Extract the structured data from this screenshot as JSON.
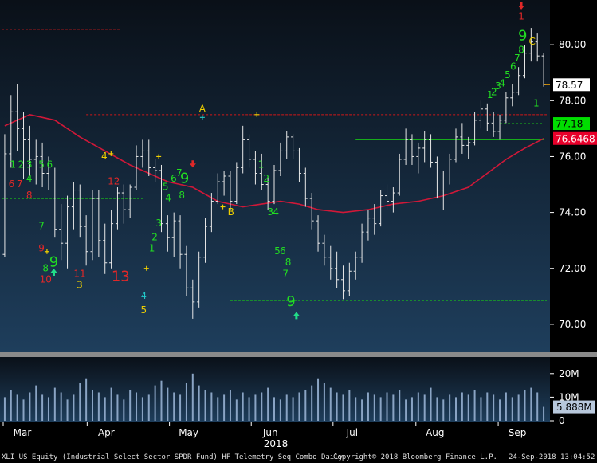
{
  "chart_data": {
    "type": "candlestick-bar",
    "title": "",
    "x_axis": {
      "months": [
        "Mar",
        "Apr",
        "May",
        "Jun",
        "Jul",
        "Aug",
        "Sep"
      ],
      "year": "2018"
    },
    "price_axis": {
      "ticks": [
        "80.00",
        "78.00",
        "76.00",
        "74.00",
        "72.00",
        "70.00"
      ],
      "ylim": [
        69.0,
        81.6
      ]
    },
    "volume_axis": {
      "ticks": [
        "20M",
        "10M",
        "0"
      ],
      "ylim": [
        0,
        25
      ]
    },
    "price_labels": [
      {
        "text": "78.57",
        "value": 78.57,
        "bg": "#ffffff",
        "fg": "#000000"
      },
      {
        "text": "77.18",
        "value": 77.18,
        "bg": "#00dd00",
        "fg": "#000000"
      },
      {
        "text": "76.6468",
        "value": 76.6468,
        "bg": "#e8002a",
        "fg": "#ffffff"
      }
    ],
    "volume_label": {
      "text": "5.888M",
      "value": 5.888
    },
    "bars": [
      [
        72.5,
        76.8,
        72.4,
        76.1
      ],
      [
        76.1,
        78.2,
        75.6,
        77.6
      ],
      [
        77.6,
        78.6,
        76.2,
        77.0
      ],
      [
        77.0,
        77.6,
        75.2,
        76.6
      ],
      [
        76.6,
        77.1,
        75.3,
        75.9
      ],
      [
        75.9,
        76.6,
        75.0,
        76.0
      ],
      [
        76.0,
        76.5,
        74.9,
        75.4
      ],
      [
        75.4,
        76.0,
        74.8,
        75.2
      ],
      [
        75.2,
        75.6,
        73.1,
        73.4
      ],
      [
        73.4,
        74.3,
        72.3,
        72.9
      ],
      [
        72.9,
        74.6,
        72.0,
        74.2
      ],
      [
        74.2,
        75.1,
        73.4,
        74.8
      ],
      [
        74.8,
        75.0,
        73.1,
        73.5
      ],
      [
        73.5,
        73.9,
        72.1,
        72.6
      ],
      [
        72.6,
        74.8,
        72.3,
        74.5
      ],
      [
        74.5,
        74.8,
        72.4,
        73.0
      ],
      [
        73.0,
        73.6,
        71.8,
        72.2
      ],
      [
        72.2,
        74.1,
        72.0,
        73.6
      ],
      [
        73.6,
        74.9,
        73.4,
        74.7
      ],
      [
        74.7,
        75.0,
        73.6,
        74.1
      ],
      [
        74.1,
        75.0,
        73.8,
        74.9
      ],
      [
        74.9,
        76.4,
        74.8,
        76.0
      ],
      [
        76.0,
        76.6,
        75.6,
        76.2
      ],
      [
        76.2,
        76.6,
        75.3,
        75.6
      ],
      [
        75.6,
        75.9,
        75.1,
        75.5
      ],
      [
        75.5,
        75.7,
        73.3,
        73.6
      ],
      [
        73.6,
        73.9,
        72.6,
        73.1
      ],
      [
        73.1,
        74.0,
        72.4,
        73.7
      ],
      [
        73.7,
        73.9,
        72.0,
        72.5
      ],
      [
        72.5,
        72.8,
        71.0,
        71.3
      ],
      [
        71.3,
        71.6,
        70.2,
        70.8
      ],
      [
        70.8,
        72.6,
        70.6,
        72.4
      ],
      [
        72.4,
        73.8,
        72.2,
        73.5
      ],
      [
        73.5,
        74.7,
        73.3,
        74.4
      ],
      [
        74.4,
        75.4,
        74.3,
        75.1
      ],
      [
        75.1,
        75.5,
        74.6,
        75.3
      ],
      [
        75.3,
        75.5,
        74.1,
        74.4
      ],
      [
        74.4,
        75.8,
        74.3,
        75.6
      ],
      [
        75.6,
        77.1,
        75.4,
        76.6
      ],
      [
        76.6,
        76.8,
        75.6,
        75.9
      ],
      [
        75.9,
        76.2,
        75.0,
        75.4
      ],
      [
        75.4,
        76.1,
        74.8,
        75.0
      ],
      [
        75.0,
        75.3,
        74.1,
        74.4
      ],
      [
        74.4,
        75.7,
        74.3,
        75.5
      ],
      [
        75.5,
        76.5,
        75.3,
        76.2
      ],
      [
        76.2,
        76.9,
        75.9,
        76.7
      ],
      [
        76.7,
        76.8,
        75.9,
        76.2
      ],
      [
        76.2,
        76.3,
        75.1,
        75.4
      ],
      [
        75.4,
        75.6,
        74.2,
        74.5
      ],
      [
        74.5,
        74.7,
        73.4,
        73.7
      ],
      [
        73.7,
        73.9,
        72.6,
        72.9
      ],
      [
        72.9,
        73.2,
        72.1,
        72.4
      ],
      [
        72.4,
        72.8,
        71.6,
        72.0
      ],
      [
        72.0,
        72.6,
        71.3,
        71.6
      ],
      [
        71.6,
        72.1,
        70.9,
        71.2
      ],
      [
        71.2,
        72.2,
        71.0,
        71.9
      ],
      [
        71.9,
        72.6,
        71.6,
        72.4
      ],
      [
        72.4,
        73.6,
        72.2,
        73.3
      ],
      [
        73.3,
        74.1,
        73.0,
        73.8
      ],
      [
        73.8,
        74.3,
        73.2,
        73.6
      ],
      [
        73.6,
        74.8,
        73.5,
        74.6
      ],
      [
        74.6,
        75.0,
        74.1,
        74.4
      ],
      [
        74.4,
        74.9,
        74.0,
        74.7
      ],
      [
        74.7,
        76.1,
        74.6,
        75.9
      ],
      [
        75.9,
        77.0,
        75.7,
        76.6
      ],
      [
        76.6,
        76.8,
        75.7,
        76.0
      ],
      [
        76.0,
        76.5,
        75.4,
        76.3
      ],
      [
        76.3,
        76.9,
        75.8,
        76.6
      ],
      [
        76.6,
        76.8,
        75.6,
        75.8
      ],
      [
        75.8,
        76.0,
        74.5,
        74.8
      ],
      [
        74.8,
        75.5,
        74.1,
        75.2
      ],
      [
        75.2,
        76.1,
        75.0,
        75.9
      ],
      [
        75.9,
        77.0,
        75.8,
        76.7
      ],
      [
        76.7,
        77.2,
        76.1,
        76.4
      ],
      [
        76.4,
        76.7,
        75.9,
        76.5
      ],
      [
        76.5,
        77.6,
        76.4,
        77.3
      ],
      [
        77.3,
        78.0,
        77.0,
        77.7
      ],
      [
        77.7,
        77.9,
        76.9,
        77.2
      ],
      [
        77.2,
        77.6,
        76.7,
        76.9
      ],
      [
        76.9,
        77.5,
        76.6,
        77.3
      ],
      [
        77.3,
        78.3,
        77.2,
        78.1
      ],
      [
        78.1,
        78.6,
        77.8,
        78.3
      ],
      [
        78.3,
        79.2,
        78.2,
        78.9
      ],
      [
        78.9,
        80.0,
        78.8,
        79.7
      ],
      [
        79.7,
        80.6,
        79.4,
        80.1
      ],
      [
        80.1,
        80.4,
        79.4,
        79.6
      ],
      [
        79.6,
        79.7,
        78.5,
        78.57
      ]
    ],
    "ma_line": [
      [
        0,
        77.1
      ],
      [
        4,
        77.5
      ],
      [
        8,
        77.3
      ],
      [
        12,
        76.7
      ],
      [
        16,
        76.2
      ],
      [
        20,
        75.7
      ],
      [
        23,
        75.4
      ],
      [
        26,
        75.1
      ],
      [
        30,
        74.9
      ],
      [
        34,
        74.4
      ],
      [
        38,
        74.2
      ],
      [
        41,
        74.3
      ],
      [
        44,
        74.4
      ],
      [
        47,
        74.3
      ],
      [
        50,
        74.1
      ],
      [
        54,
        74.0
      ],
      [
        58,
        74.1
      ],
      [
        62,
        74.3
      ],
      [
        66,
        74.4
      ],
      [
        70,
        74.6
      ],
      [
        74,
        74.9
      ],
      [
        77,
        75.4
      ],
      [
        80,
        75.9
      ],
      [
        83,
        76.3
      ],
      [
        86,
        76.6468
      ]
    ],
    "volumes": [
      10,
      13,
      11,
      9,
      12,
      15,
      11,
      10,
      14,
      12,
      9,
      11,
      16,
      18,
      13,
      12,
      10,
      14,
      11,
      9,
      13,
      12,
      10,
      11,
      15,
      17,
      14,
      12,
      11,
      16,
      20,
      15,
      13,
      12,
      10,
      11,
      13,
      9,
      12,
      10,
      11,
      12,
      14,
      10,
      9,
      11,
      10,
      12,
      13,
      15,
      18,
      16,
      14,
      12,
      11,
      13,
      10,
      9,
      12,
      11,
      10,
      12,
      11,
      13,
      9,
      10,
      12,
      11,
      14,
      10,
      9,
      11,
      10,
      12,
      11,
      13,
      10,
      12,
      11,
      9,
      12,
      10,
      11,
      13,
      14,
      12,
      5.888
    ],
    "reference_lines": [
      {
        "y": 80.55,
        "x_start": -0.5,
        "x_end": 18.5,
        "color": "#d01818",
        "style": "dashed"
      },
      {
        "y": 77.5,
        "x_start": 13,
        "x_end": 89,
        "color": "#d01818",
        "style": "dashed"
      },
      {
        "y": 74.5,
        "x_start": -0.5,
        "x_end": 22,
        "color": "#18c018",
        "style": "dashed"
      },
      {
        "y": 76.6,
        "x_start": 56,
        "x_end": 86,
        "color": "#18c018",
        "style": "solid"
      },
      {
        "y": 70.85,
        "x_start": 36,
        "x_end": 100,
        "color": "#18c018",
        "style": "dashed"
      },
      {
        "y": 77.18,
        "x_start": 79,
        "x_end": 86,
        "color": "#18c018",
        "style": "dashed"
      }
    ],
    "annotations": [
      {
        "text": "1",
        "x": 0.6,
        "y": 75.7,
        "color": "#22dd22",
        "size": 12
      },
      {
        "text": "2",
        "x": 1.2,
        "y": 75.7,
        "color": "#22dd22",
        "size": 12
      },
      {
        "text": "3",
        "x": 1.8,
        "y": 75.7,
        "color": "#22dd22",
        "size": 12
      },
      {
        "text": "5",
        "x": 2.7,
        "y": 75.7,
        "color": "#22dd22",
        "size": 12
      },
      {
        "text": "6",
        "x": 3.3,
        "y": 75.7,
        "color": "#22dd22",
        "size": 12
      },
      {
        "text": "4",
        "x": 1.8,
        "y": 75.2,
        "color": "#22dd22",
        "size": 12
      },
      {
        "text": "6",
        "x": 0.5,
        "y": 75.0,
        "color": "#e02828",
        "size": 12
      },
      {
        "text": "7",
        "x": 1.1,
        "y": 75.0,
        "color": "#e02828",
        "size": 12
      },
      {
        "text": "8",
        "x": 1.8,
        "y": 74.6,
        "color": "#e02828",
        "size": 12
      },
      {
        "text": "7",
        "x": 2.7,
        "y": 73.5,
        "color": "#22dd22",
        "size": 12
      },
      {
        "text": "9",
        "x": 2.7,
        "y": 72.7,
        "color": "#e02828",
        "size": 12
      },
      {
        "text": "9",
        "x": 3.6,
        "y": 72.2,
        "color": "#22dd22",
        "size": 18
      },
      {
        "text": "8",
        "x": 3.0,
        "y": 72.0,
        "color": "#22dd22",
        "size": 12
      },
      {
        "text": "10",
        "x": 3.0,
        "y": 71.6,
        "color": "#e02828",
        "size": 12
      },
      {
        "text": "11",
        "x": 5.5,
        "y": 71.8,
        "color": "#e02828",
        "size": 12
      },
      {
        "text": "3",
        "x": 5.5,
        "y": 71.4,
        "color": "#f0d000",
        "size": 12
      },
      {
        "text": "4",
        "x": 7.3,
        "y": 76.0,
        "color": "#f0d000",
        "size": 12
      },
      {
        "text": "12",
        "x": 8.0,
        "y": 75.1,
        "color": "#e02828",
        "size": 12
      },
      {
        "text": "13",
        "x": 8.5,
        "y": 71.7,
        "color": "#e02828",
        "size": 18
      },
      {
        "text": "1",
        "x": 10.8,
        "y": 72.7,
        "color": "#22dd22",
        "size": 12
      },
      {
        "text": "2",
        "x": 11.0,
        "y": 73.1,
        "color": "#22dd22",
        "size": 12
      },
      {
        "text": "3",
        "x": 11.3,
        "y": 73.6,
        "color": "#22dd22",
        "size": 12
      },
      {
        "text": "4",
        "x": 12.0,
        "y": 74.5,
        "color": "#22dd22",
        "size": 12
      },
      {
        "text": "5",
        "x": 11.8,
        "y": 74.9,
        "color": "#22dd22",
        "size": 12
      },
      {
        "text": "6",
        "x": 12.4,
        "y": 75.2,
        "color": "#22dd22",
        "size": 12
      },
      {
        "text": "7",
        "x": 12.8,
        "y": 75.4,
        "color": "#22dd22",
        "size": 12
      },
      {
        "text": "8",
        "x": 13.0,
        "y": 74.6,
        "color": "#22dd22",
        "size": 12
      },
      {
        "text": "9",
        "x": 13.2,
        "y": 75.2,
        "color": "#22dd22",
        "size": 18
      },
      {
        "text": "4",
        "x": 10.2,
        "y": 71.0,
        "color": "#22cccc",
        "size": 11
      },
      {
        "text": "5",
        "x": 10.2,
        "y": 70.5,
        "color": "#f0d000",
        "size": 12
      },
      {
        "text": "A",
        "x": 14.5,
        "y": 77.7,
        "color": "#f0d000",
        "size": 12
      },
      {
        "text": "B",
        "x": 16.6,
        "y": 74.0,
        "color": "#f0d000",
        "size": 12
      },
      {
        "text": "1",
        "x": 18.8,
        "y": 75.7,
        "color": "#22dd22",
        "size": 12
      },
      {
        "text": "2",
        "x": 19.2,
        "y": 75.2,
        "color": "#22dd22",
        "size": 12
      },
      {
        "text": "3",
        "x": 19.5,
        "y": 74.0,
        "color": "#22dd22",
        "size": 12
      },
      {
        "text": "4",
        "x": 19.9,
        "y": 74.0,
        "color": "#22dd22",
        "size": 12
      },
      {
        "text": "5",
        "x": 20.0,
        "y": 72.6,
        "color": "#22dd22",
        "size": 12
      },
      {
        "text": "6",
        "x": 20.4,
        "y": 72.6,
        "color": "#22dd22",
        "size": 12
      },
      {
        "text": "8",
        "x": 20.8,
        "y": 72.2,
        "color": "#22dd22",
        "size": 12
      },
      {
        "text": "7",
        "x": 20.6,
        "y": 71.8,
        "color": "#22dd22",
        "size": 12
      },
      {
        "text": "9",
        "x": 21.0,
        "y": 70.8,
        "color": "#22dd22",
        "size": 18
      },
      {
        "text": "1",
        "x": 35.6,
        "y": 78.2,
        "color": "#22dd22",
        "size": 12
      },
      {
        "text": "2",
        "x": 35.9,
        "y": 78.3,
        "color": "#22dd22",
        "size": 12
      },
      {
        "text": "3",
        "x": 36.2,
        "y": 78.5,
        "color": "#22dd22",
        "size": 12
      },
      {
        "text": "4",
        "x": 36.5,
        "y": 78.6,
        "color": "#22dd22",
        "size": 12
      },
      {
        "text": "5",
        "x": 36.9,
        "y": 78.9,
        "color": "#22dd22",
        "size": 12
      },
      {
        "text": "6",
        "x": 37.3,
        "y": 79.2,
        "color": "#22dd22",
        "size": 12
      },
      {
        "text": "7",
        "x": 37.6,
        "y": 79.5,
        "color": "#22dd22",
        "size": 12
      },
      {
        "text": "8",
        "x": 37.9,
        "y": 79.8,
        "color": "#22dd22",
        "size": 12
      },
      {
        "text": "9",
        "x": 38.0,
        "y": 80.3,
        "color": "#22dd22",
        "size": 18
      },
      {
        "text": "C",
        "x": 38.7,
        "y": 80.1,
        "color": "#f0d000",
        "size": 12
      },
      {
        "text": "1",
        "x": 37.9,
        "y": 81.0,
        "color": "#e02828",
        "size": 12
      },
      {
        "text": "1",
        "x": 39.0,
        "y": 77.9,
        "color": "#22dd22",
        "size": 12
      }
    ],
    "arrows": [
      {
        "x": 3.6,
        "y": 71.85,
        "dir": "up",
        "color": "#22dd88"
      },
      {
        "x": 21.4,
        "y": 70.3,
        "dir": "up",
        "color": "#22dd88"
      },
      {
        "x": 13.8,
        "y": 75.75,
        "dir": "down",
        "color": "#e02828"
      },
      {
        "x": 37.9,
        "y": 81.4,
        "dir": "down",
        "color": "#e02828"
      }
    ],
    "plus_marks": [
      {
        "x": 7.8,
        "y": 76.1,
        "color": "#f0d000"
      },
      {
        "x": 3.1,
        "y": 72.6,
        "color": "#f0d000"
      },
      {
        "x": 10.4,
        "y": 72.0,
        "color": "#f0d000"
      },
      {
        "x": 11.3,
        "y": 76.0,
        "color": "#f0d000"
      },
      {
        "x": 14.5,
        "y": 77.4,
        "color": "#22cccc"
      },
      {
        "x": 16.0,
        "y": 74.2,
        "color": "#f0d000"
      },
      {
        "x": 18.5,
        "y": 77.5,
        "color": "#f0d000"
      }
    ],
    "footer": {
      "left": "XLI US Equity (Industrial Select Sector SPDR Fund) HF Telemetry Seq Combo  Daily",
      "middle": "Copyright© 2018 Bloomberg Finance L.P.",
      "right": "24-Sep-2018 13:04:52"
    },
    "colors": {
      "bg_top": "#0a1018",
      "bg_bottom": "#1e3e5c",
      "bars": "#e8e8e8",
      "ma": "#d01838",
      "volume": "#8aa4c4",
      "axis_text": "#ffffff",
      "divider": "#8a8a8a"
    }
  }
}
